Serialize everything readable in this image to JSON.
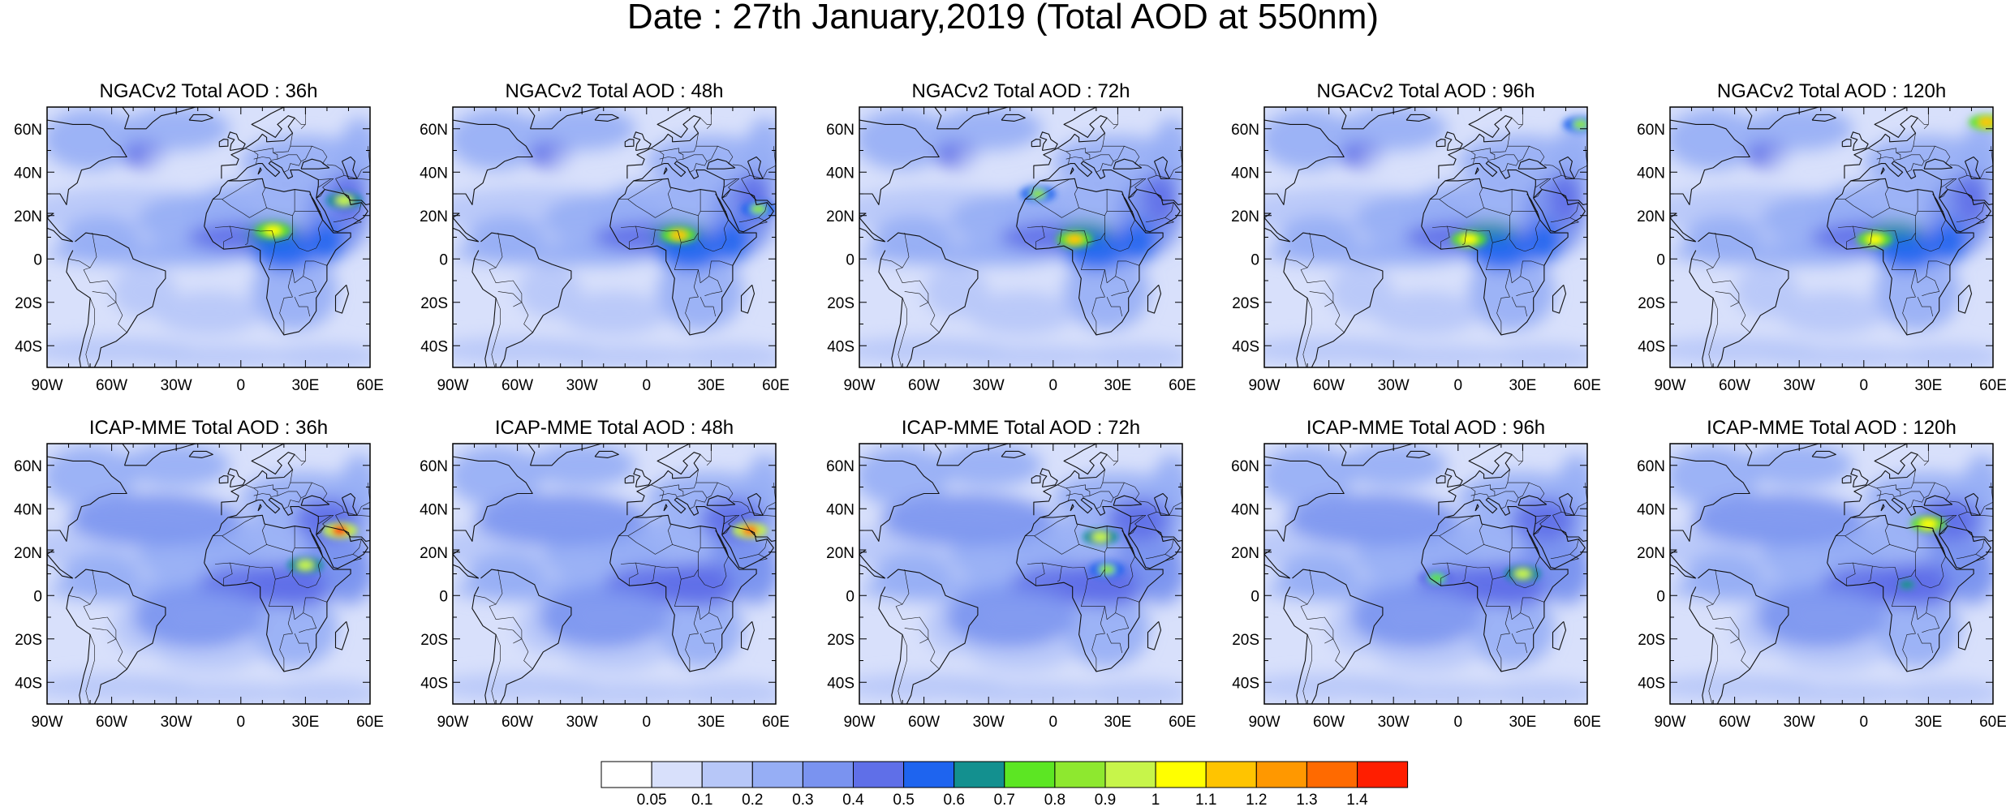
{
  "title": "Date : 27th January,2019 (Total AOD at 550nm)",
  "panel_titles": [
    "NGACv2 Total AOD : 36h",
    "NGACv2 Total AOD : 48h",
    "NGACv2 Total AOD : 72h",
    "NGACv2 Total AOD : 96h",
    "NGACv2 Total AOD : 120h",
    "ICAP-MME Total AOD : 36h",
    "ICAP-MME Total AOD : 48h",
    "ICAP-MME Total AOD : 72h",
    "ICAP-MME Total AOD : 96h",
    "ICAP-MME Total AOD : 120h"
  ],
  "lat_ticks": [
    "60N",
    "40N",
    "20N",
    "0",
    "20S",
    "40S"
  ],
  "lon_ticks": [
    "90W",
    "60W",
    "30W",
    "0",
    "30E",
    "60E"
  ],
  "colorbar": {
    "labels": [
      "0.05",
      "0.1",
      "0.2",
      "0.3",
      "0.4",
      "0.5",
      "0.6",
      "0.7",
      "0.8",
      "0.9",
      "1",
      "1.1",
      "1.2",
      "1.3",
      "1.4"
    ],
    "colors": [
      "#ffffff",
      "#d8e0fb",
      "#b7c7f8",
      "#96aef5",
      "#7a93f0",
      "#5f6fe8",
      "#1e64ef",
      "#13908f",
      "#5ce623",
      "#8ee82f",
      "#c7f54a",
      "#ffff00",
      "#ffc400",
      "#ff9800",
      "#ff6a00",
      "#ff1e00"
    ]
  },
  "chart_data": {
    "type": "heatmap",
    "title": "Date : 27th January,2019 (Total AOD at 550nm)",
    "variable": "Total AOD at 550nm",
    "date": "27th January,2019",
    "rows": [
      "NGACv2",
      "ICAP-MME"
    ],
    "forecast_hours": [
      "36h",
      "48h",
      "72h",
      "96h",
      "120h"
    ],
    "lon_range": [
      -90,
      60
    ],
    "lat_range": [
      -50,
      70
    ],
    "levels": [
      0.05,
      0.1,
      0.2,
      0.3,
      0.4,
      0.5,
      0.6,
      0.7,
      0.8,
      0.9,
      1,
      1.1,
      1.2,
      1.3,
      1.4
    ],
    "panels": [
      {
        "model": "NGACv2",
        "hour": "36h",
        "hotspots": [
          {
            "lon": 15,
            "lat": 13,
            "aod": 1.0
          },
          {
            "lon": 48,
            "lat": 27,
            "aod": 0.9
          }
        ]
      },
      {
        "model": "NGACv2",
        "hour": "48h",
        "hotspots": [
          {
            "lon": 15,
            "lat": 11,
            "aod": 1.1
          },
          {
            "lon": 52,
            "lat": 23,
            "aod": 0.8
          }
        ]
      },
      {
        "model": "NGACv2",
        "hour": "72h",
        "hotspots": [
          {
            "lon": 10,
            "lat": 9,
            "aod": 1.1
          },
          {
            "lon": -7,
            "lat": 30,
            "aod": 0.8
          }
        ]
      },
      {
        "model": "NGACv2",
        "hour": "96h",
        "hotspots": [
          {
            "lon": 5,
            "lat": 9,
            "aod": 1.0
          },
          {
            "lon": 57,
            "lat": 62,
            "aod": 0.8
          }
        ]
      },
      {
        "model": "NGACv2",
        "hour": "120h",
        "hotspots": [
          {
            "lon": 5,
            "lat": 9,
            "aod": 1.0
          },
          {
            "lon": 57,
            "lat": 63,
            "aod": 1.1
          }
        ]
      },
      {
        "model": "ICAP-MME",
        "hour": "36h",
        "hotspots": [
          {
            "lon": 46,
            "lat": 30,
            "aod": 1.4
          },
          {
            "lon": 30,
            "lat": 14,
            "aod": 0.9
          }
        ]
      },
      {
        "model": "ICAP-MME",
        "hour": "48h",
        "hotspots": [
          {
            "lon": 48,
            "lat": 30,
            "aod": 1.3
          }
        ]
      },
      {
        "model": "ICAP-MME",
        "hour": "72h",
        "hotspots": [
          {
            "lon": 22,
            "lat": 27,
            "aod": 0.9
          },
          {
            "lon": 25,
            "lat": 12,
            "aod": 0.8
          }
        ]
      },
      {
        "model": "ICAP-MME",
        "hour": "96h",
        "hotspots": [
          {
            "lon": 30,
            "lat": 10,
            "aod": 0.9
          },
          {
            "lon": -10,
            "lat": 8,
            "aod": 0.7
          }
        ]
      },
      {
        "model": "ICAP-MME",
        "hour": "120h",
        "hotspots": [
          {
            "lon": 30,
            "lat": 33,
            "aod": 1.0
          },
          {
            "lon": 20,
            "lat": 5,
            "aod": 0.6
          }
        ]
      }
    ]
  }
}
